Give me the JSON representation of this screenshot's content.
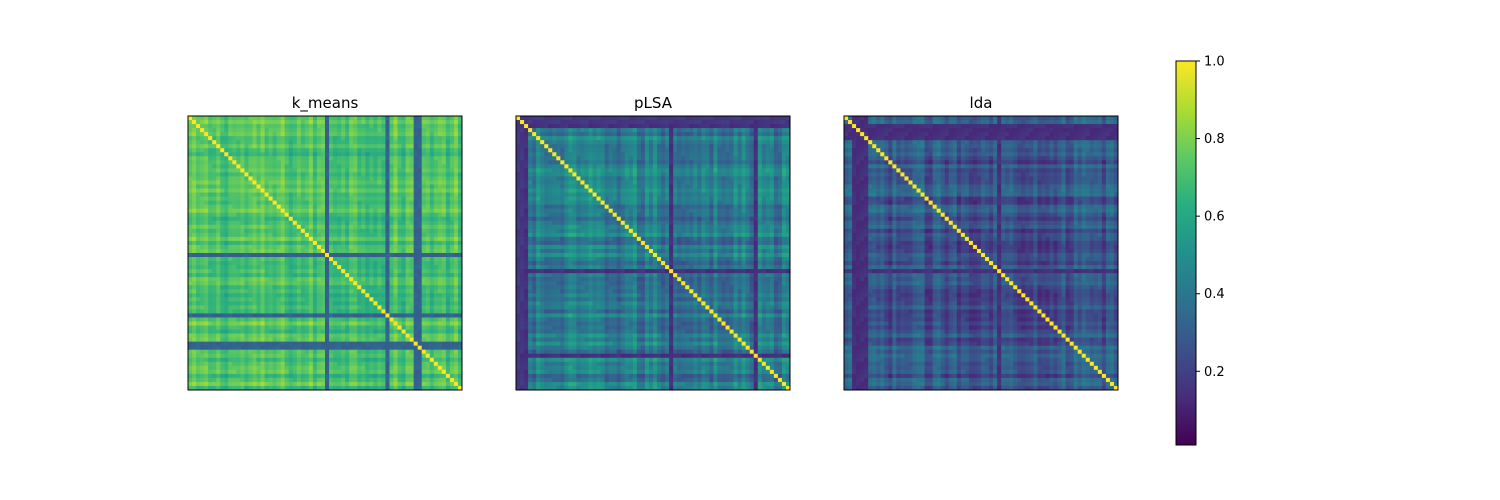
{
  "chart_data": {
    "type": "heatmap",
    "panels": [
      {
        "title": "k_means",
        "n": 68,
        "diagonal_value": 1.0,
        "typical_value": 0.72,
        "spread": 0.07,
        "weak_indices": [
          34,
          49,
          57
        ],
        "weak_value": 0.3,
        "weak_row_indices": [
          34,
          56
        ],
        "weak_row_value": 0.3,
        "xticks": [],
        "yticks": []
      },
      {
        "title": "pLSA",
        "n": 68,
        "diagonal_value": 1.0,
        "typical_value": 0.42,
        "spread": 0.1,
        "weak_indices": [
          2,
          38,
          59
        ],
        "weak_value": 0.12,
        "weak_row_indices": [
          0,
          1
        ],
        "weak_row_value": 0.15,
        "xticks": [],
        "yticks": []
      },
      {
        "title": "lda",
        "n": 68,
        "diagonal_value": 1.0,
        "typical_value": 0.28,
        "spread": 0.08,
        "weak_indices": [
          3,
          4,
          5,
          38
        ],
        "weak_value": 0.12,
        "weak_row_indices": [
          2,
          3
        ],
        "weak_row_value": 0.12,
        "xticks": [],
        "yticks": []
      }
    ],
    "colorbar": {
      "colormap": "viridis",
      "range": [
        0.01,
        1.0
      ],
      "ticks": [
        "0.2",
        "0.4",
        "0.6",
        "0.8",
        "1.0"
      ],
      "tick_values": [
        0.2,
        0.4,
        0.6,
        0.8,
        1.0
      ]
    }
  }
}
